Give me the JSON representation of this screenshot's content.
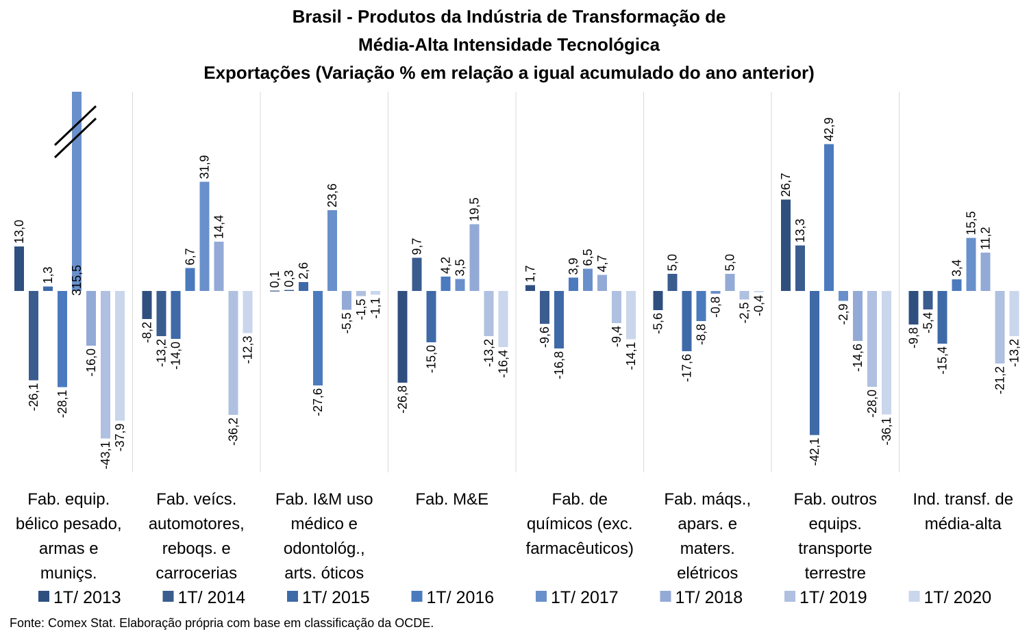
{
  "chart_data": {
    "type": "bar",
    "title_lines": [
      "Brasil - Produtos da Indústria de Transformação de",
      "Média-Alta Intensidade Tecnológica",
      "Exportações (Variação % em relação a igual acumulado do ano anterior)"
    ],
    "categories": [
      [
        "Fab. equip.",
        "bélico pesado,",
        "armas e",
        "muniçs."
      ],
      [
        "Fab. veícs.",
        "automotores,",
        "reboqs. e",
        "carrocerias"
      ],
      [
        "Fab. I&M uso",
        "médico e",
        "odontológ.,",
        "arts. óticos"
      ],
      [
        "Fab. M&E"
      ],
      [
        "Fab. de",
        "químicos (exc.",
        "farmacêuticos)"
      ],
      [
        "Fab. máqs.,",
        "apars. e",
        "maters.",
        "elétricos"
      ],
      [
        "Fab. outros",
        "equips.",
        "transporte",
        "terrestre"
      ],
      [
        "Ind. transf. de",
        "média-alta"
      ]
    ],
    "series": [
      {
        "name": "1T/ 2013",
        "color": "#2F4F7F",
        "values": [
          13.0,
          -8.2,
          0.1,
          -26.8,
          1.7,
          -5.6,
          26.7,
          -9.8
        ],
        "labels": [
          "13,0",
          "-8,2",
          "0,1",
          "-26,8",
          "1,7",
          "-5,6",
          "26,7",
          "-9,8"
        ]
      },
      {
        "name": "1T/ 2014",
        "color": "#3A5C8F",
        "values": [
          -26.1,
          -13.2,
          0.3,
          9.7,
          -9.6,
          5.0,
          13.3,
          -5.4
        ],
        "labels": [
          "-26,1",
          "-13,2",
          "0,3",
          "9,7",
          "-9,6",
          "5,0",
          "13,3",
          "-5,4"
        ]
      },
      {
        "name": "1T/ 2015",
        "color": "#3F6AA8",
        "values": [
          1.3,
          -14.0,
          2.6,
          -15.0,
          -16.8,
          -17.6,
          -42.1,
          -15.4
        ],
        "labels": [
          "1,3",
          "-14,0",
          "2,6",
          "-15,0",
          "-16,8",
          "-17,6",
          "-42,1",
          "-15,4"
        ]
      },
      {
        "name": "1T/ 2016",
        "color": "#4B7BBE",
        "values": [
          -28.1,
          6.7,
          -27.6,
          4.2,
          3.9,
          -8.8,
          42.9,
          3.4
        ],
        "labels": [
          "-28,1",
          "6,7",
          "-27,6",
          "4,2",
          "3,9",
          "-8,8",
          "42,9",
          "3,4"
        ]
      },
      {
        "name": "1T/ 2017",
        "color": "#6A90CB",
        "values": [
          315.5,
          31.9,
          23.6,
          3.5,
          6.5,
          -0.8,
          -2.9,
          15.5
        ],
        "labels": [
          "315,5",
          "31,9",
          "23,6",
          "3,5",
          "6,5",
          "-0,8",
          "-2,9",
          "15,5"
        ]
      },
      {
        "name": "1T/ 2018",
        "color": "#93AAD6",
        "values": [
          -16.0,
          14.4,
          -5.5,
          19.5,
          4.7,
          5.0,
          -14.6,
          11.2
        ],
        "labels": [
          "-16,0",
          "14,4",
          "-5,5",
          "19,5",
          "4,7",
          "5,0",
          "-14,6",
          "11,2"
        ]
      },
      {
        "name": "1T/ 2019",
        "color": "#AFC0E0",
        "values": [
          -43.1,
          -36.2,
          -1.5,
          -13.2,
          -9.4,
          -2.5,
          -28.0,
          -21.2
        ],
        "labels": [
          "-43,1",
          "-36,2",
          "-1,5",
          "-13,2",
          "-9,4",
          "-2,5",
          "-28,0",
          "-21,2"
        ]
      },
      {
        "name": "1T/ 2020",
        "color": "#CAD6EC",
        "values": [
          -37.9,
          -12.3,
          -1.1,
          -16.4,
          -14.1,
          -0.4,
          -36.1,
          -13.2
        ],
        "labels": [
          "-37,9",
          "-12,3",
          "-1,1",
          "-16,4",
          "-14,1",
          "-0,4",
          "-36,1",
          "-13,2"
        ]
      }
    ],
    "ylim": [
      -55,
      60
    ],
    "axis_break": true,
    "grid": false,
    "legend_position": "bottom",
    "source": "Fonte: Comex Stat. Elaboração própria com base em classificação da OCDE."
  }
}
